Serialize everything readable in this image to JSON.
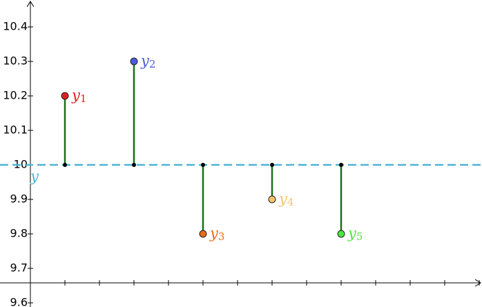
{
  "chart_data": {
    "type": "lollipop",
    "x": [
      1,
      3,
      5,
      7,
      9
    ],
    "values": [
      10.2,
      10.3,
      9.8,
      9.9,
      9.8
    ],
    "point_labels": [
      {
        "text": "y",
        "subscript": "1"
      },
      {
        "text": "y",
        "subscript": "2"
      },
      {
        "text": "y",
        "subscript": "3"
      },
      {
        "text": "y",
        "subscript": "4"
      },
      {
        "text": "y",
        "subscript": "5"
      }
    ],
    "colors": [
      "#e0201f",
      "#4d5be0",
      "#e86a1a",
      "#f5c46a",
      "#4ce83c"
    ],
    "label_colors": [
      "#e0201f",
      "#4d5be0",
      "#e86a1a",
      "#f5c46a",
      "#4ce83c"
    ],
    "stem_color": "#1a6e1a",
    "mean": {
      "value": 10,
      "label": "y",
      "color": "#4db3d4"
    },
    "xlim": [
      -0.88,
      13.08
    ],
    "ylim": [
      9.588,
      10.478
    ],
    "xticks": [
      1,
      2,
      3,
      4,
      5,
      6,
      7,
      8,
      9,
      10,
      11,
      12,
      13
    ],
    "yticks": [
      9.6,
      9.7,
      9.8,
      9.9,
      10,
      10.1,
      10.2,
      10.3,
      10.4
    ]
  }
}
